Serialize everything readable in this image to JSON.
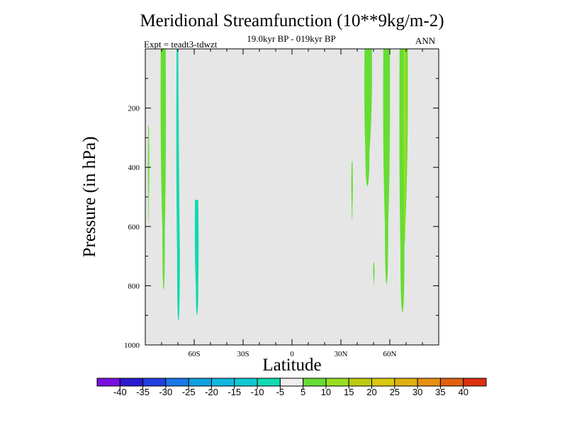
{
  "header": {
    "title": "Meridional Streamfunction (10**9kg/m-2)",
    "subtitle": "19.0kyr BP - 019kyr BP",
    "left_label": "Expt = teadt3-tdwzt",
    "right_label": "ANN"
  },
  "chart_data": {
    "type": "heatmap",
    "title": "Meridional Streamfunction (10**9kg/m-2)",
    "xlabel": "Latitude",
    "ylabel": "Pressure (in hPa)",
    "xlim": [
      -90,
      90
    ],
    "ylim": [
      1000,
      0
    ],
    "x_ticks": [
      {
        "value": -60,
        "label": "60S"
      },
      {
        "value": -30,
        "label": "30S"
      },
      {
        "value": 0,
        "label": "0"
      },
      {
        "value": 30,
        "label": "30N"
      },
      {
        "value": 60,
        "label": "60N"
      }
    ],
    "y_ticks": [
      {
        "value": 200,
        "label": "200"
      },
      {
        "value": 400,
        "label": "400"
      },
      {
        "value": 600,
        "label": "600"
      },
      {
        "value": 800,
        "label": "800"
      },
      {
        "value": 1000,
        "label": "1000"
      }
    ],
    "background_color": "#e6e6e6",
    "contour_patches": [
      {
        "name": "green-band-75S",
        "level": 5,
        "color": "#66dd33",
        "lat_left_top": -80.5,
        "lat_right_top": -77.5,
        "lat_left_bottom": -79.5,
        "lat_right_bottom": -78,
        "p_top": 0,
        "p_bottom": 815
      },
      {
        "name": "thin-sliver-88S",
        "level": 5,
        "color": "#66dd33",
        "lat_left_top": -88.2,
        "lat_right_top": -87.8,
        "lat_left_bottom": -88.2,
        "lat_right_bottom": -87.8,
        "p_top": 260,
        "p_bottom": 590
      },
      {
        "name": "cyan-band-68S",
        "level": -5,
        "color": "#11d9b0",
        "lat_left_top": -70.8,
        "lat_right_top": -69.8,
        "lat_left_bottom": -70.5,
        "lat_right_bottom": -68.8,
        "p_top": 0,
        "p_bottom": 920
      },
      {
        "name": "cyan-blob-57S",
        "level": -5,
        "color": "#11d9b0",
        "lat_left_top": -59.5,
        "lat_right_top": -57.5,
        "lat_left_bottom": -59,
        "lat_right_bottom": -57.5,
        "p_top": 510,
        "p_bottom": 900
      },
      {
        "name": "green-sliver-37N",
        "level": 5,
        "color": "#66dd33",
        "lat_left_top": 36.6,
        "lat_right_top": 37.1,
        "lat_left_bottom": 36.6,
        "lat_right_bottom": 37.1,
        "p_top": 380,
        "p_bottom": 580
      },
      {
        "name": "green-band-46N",
        "level": 5,
        "color": "#66dd33",
        "lat_left_top": 44.5,
        "lat_right_top": 49,
        "lat_left_bottom": 45,
        "lat_right_bottom": 47.5,
        "p_top": 0,
        "p_bottom": 465
      },
      {
        "name": "green-dot-50N",
        "level": 5,
        "color": "#66dd33",
        "lat_left_top": 50,
        "lat_right_top": 50.4,
        "lat_left_bottom": 50,
        "lat_right_bottom": 50.4,
        "p_top": 720,
        "p_bottom": 800
      },
      {
        "name": "green-band-57N",
        "level": 5,
        "color": "#66dd33",
        "lat_left_top": 56,
        "lat_right_top": 60,
        "lat_left_bottom": 57,
        "lat_right_bottom": 59,
        "p_top": 0,
        "p_bottom": 795
      },
      {
        "name": "green-band-68N",
        "level": 5,
        "color": "#66dd33",
        "lat_left_top": 66,
        "lat_right_top": 71,
        "lat_left_bottom": 66.5,
        "lat_right_bottom": 69,
        "p_top": 0,
        "p_bottom": 890
      },
      {
        "name": "lime-core-70N",
        "level": 10,
        "color": "#99dd22",
        "lat_left_top": 68.5,
        "lat_right_top": 70,
        "lat_left_bottom": 68.8,
        "lat_right_bottom": 69.6,
        "p_top": 0,
        "p_bottom": 650
      }
    ],
    "colorbar": {
      "colors": [
        "#7a10e0",
        "#2a1ad0",
        "#2040e0",
        "#1a78e8",
        "#10a0e0",
        "#10b8e0",
        "#10c8d0",
        "#11d9b0",
        "#eeeeee",
        "#66dd33",
        "#99dd22",
        "#bbcc10",
        "#d8c810",
        "#e0b010",
        "#e69010",
        "#e06010",
        "#dd3010"
      ],
      "labels": [
        "-40",
        "-35",
        "-30",
        "-25",
        "-20",
        "-15",
        "-10",
        "-5",
        "5",
        "10",
        "15",
        "20",
        "25",
        "30",
        "35",
        "40"
      ]
    }
  }
}
